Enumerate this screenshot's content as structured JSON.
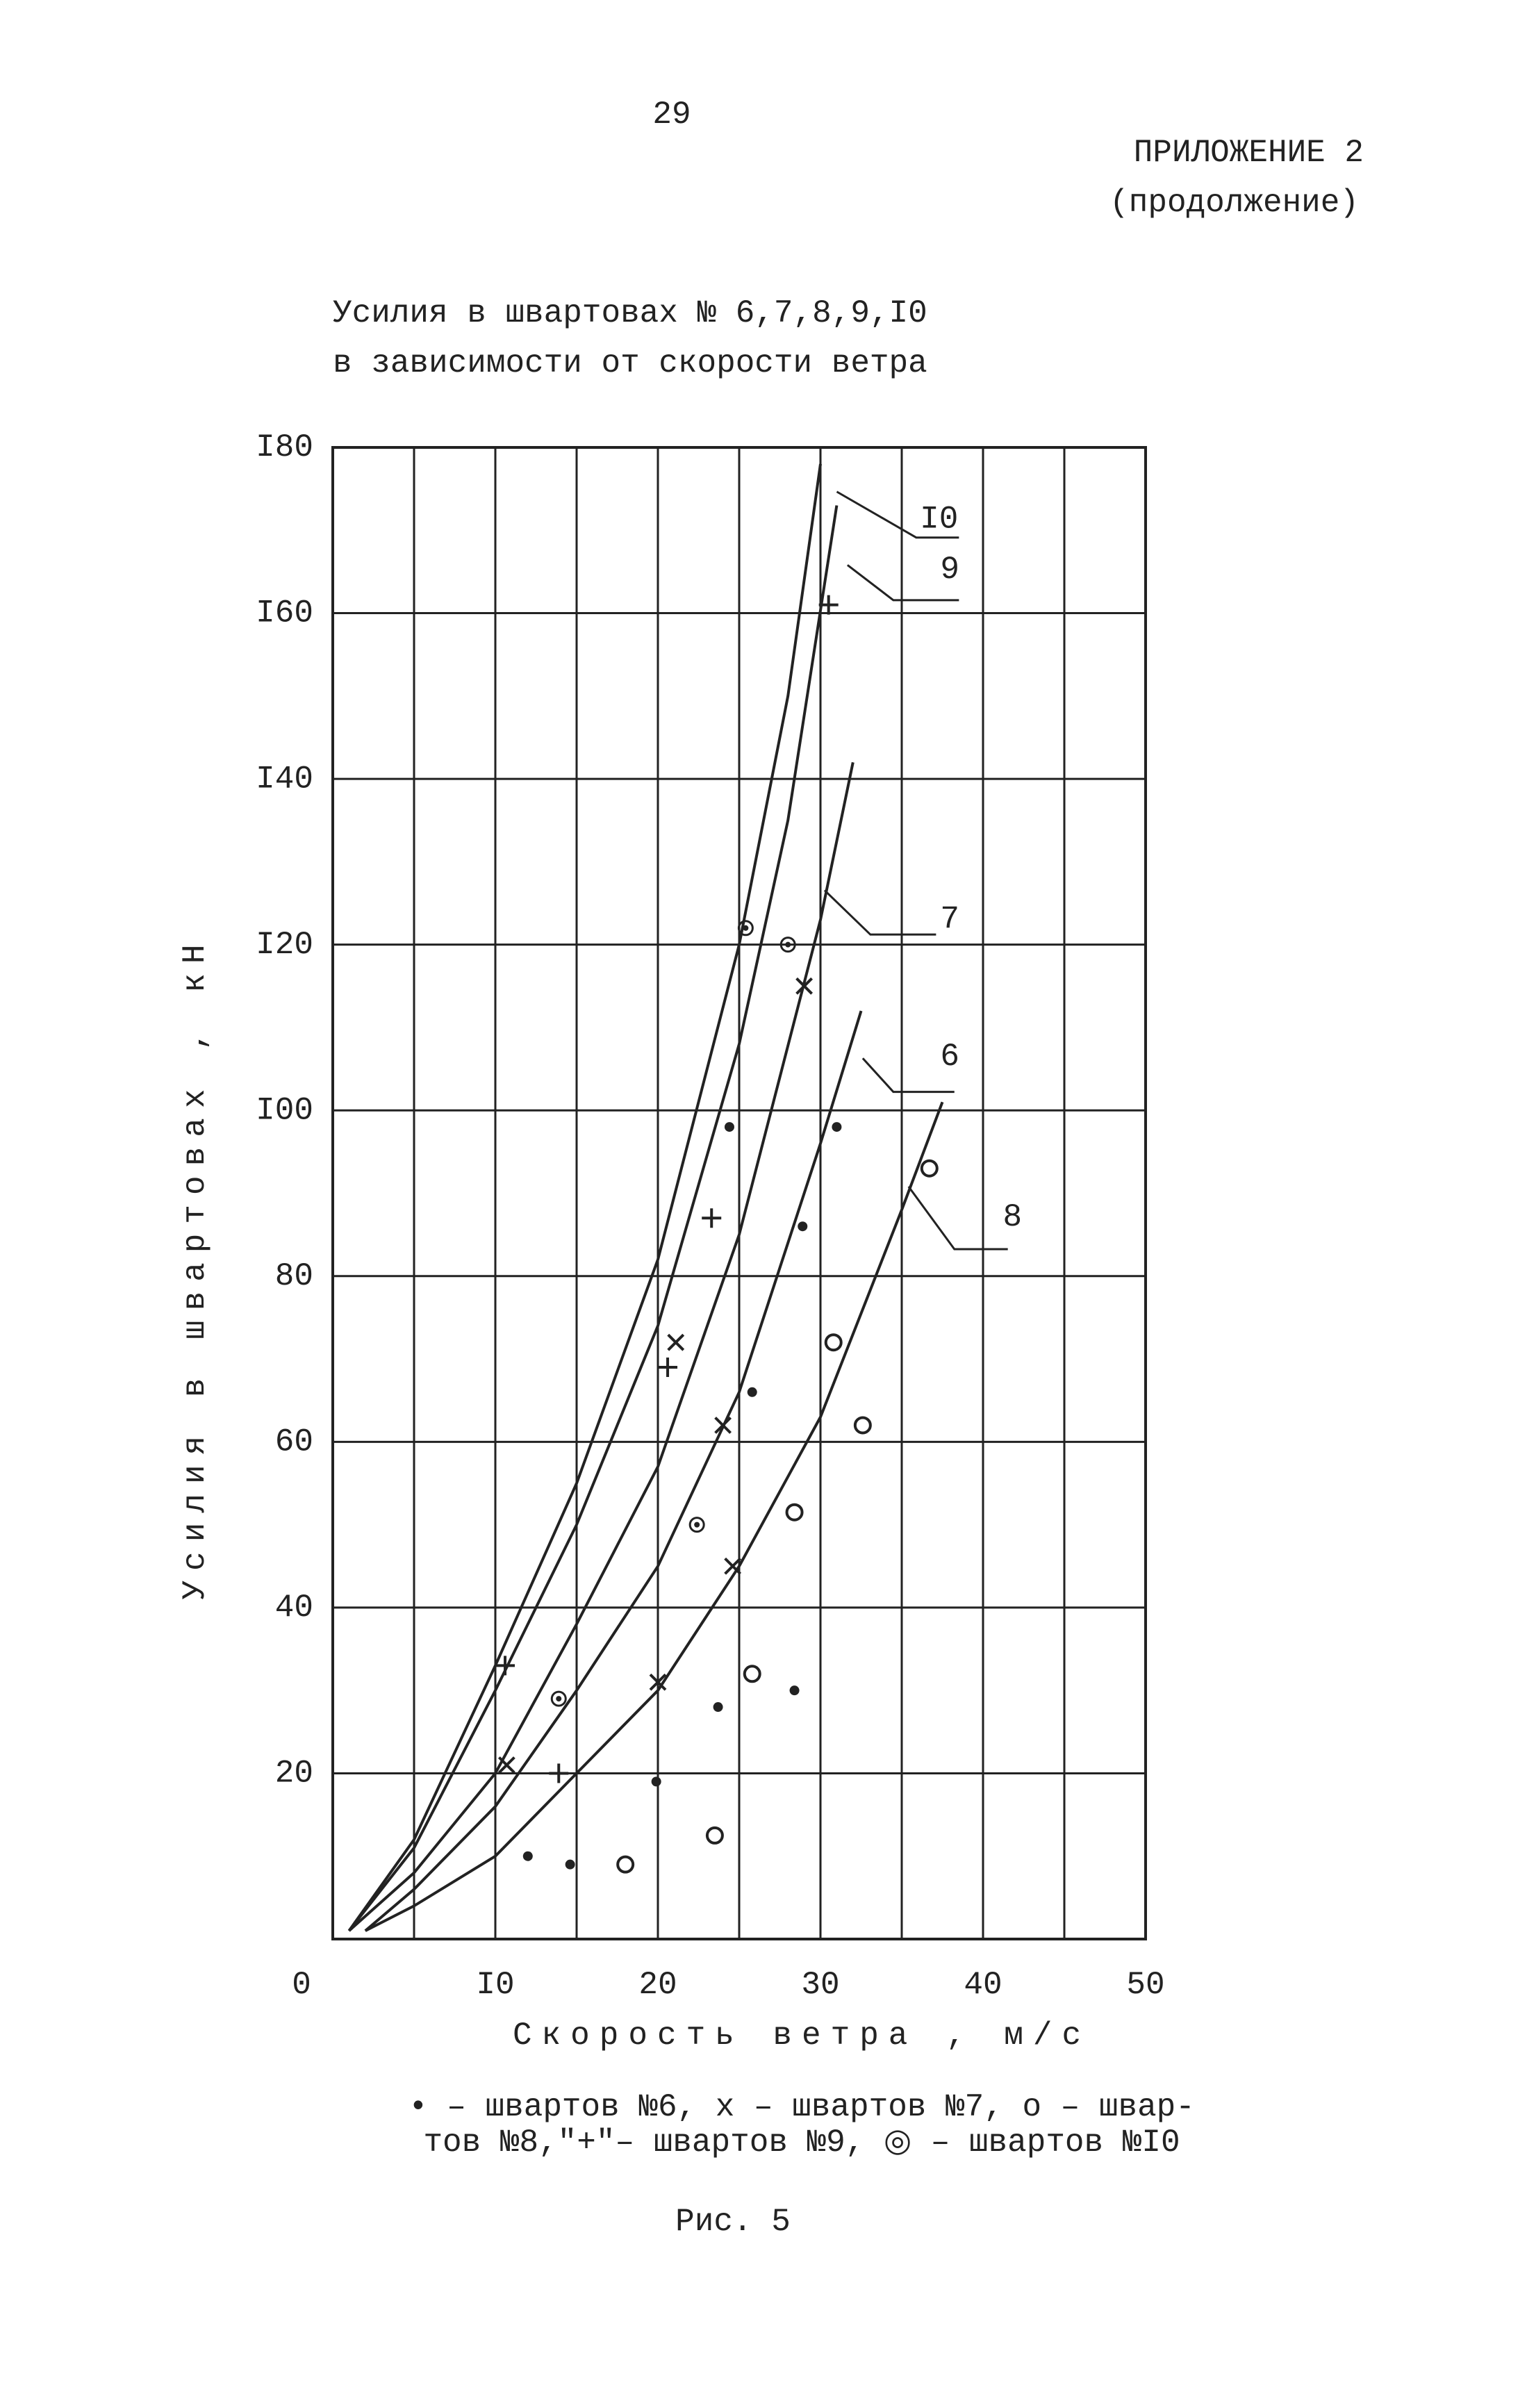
{
  "page_number": "29",
  "appendix": "ПРИЛОЖЕНИЕ 2",
  "appendix_note": "(продолжение)",
  "caption": "Рис. 5",
  "chart_data": {
    "type": "line",
    "title": [
      "Усилия в швартовах № 6,7,8,9,I0",
      "в зависимости от скорости ветра"
    ],
    "xlabel": "Скорость ветра , м/с",
    "ylabel": "Усилия в швартовах , кН",
    "legend_text": [
      "• – швартов №6, х – швартов №7, о – швар-",
      "тов №8,\"+\"– швартов №9, ◎ – швартов №I0"
    ],
    "xlim": [
      0,
      50
    ],
    "ylim": [
      0,
      180
    ],
    "xticks": [
      0,
      {
        "value": 10,
        "label": "I0"
      },
      20,
      30,
      40,
      50
    ],
    "yticks": [
      20,
      40,
      60,
      80,
      {
        "value": 100,
        "label": "I00"
      },
      {
        "value": 120,
        "label": "I20"
      },
      {
        "value": 140,
        "label": "I40"
      },
      {
        "value": 160,
        "label": "I60"
      },
      {
        "value": 180,
        "label": "I80"
      }
    ],
    "xgrid": [
      5,
      15,
      25,
      35,
      45
    ],
    "grid": true,
    "color": "#222222",
    "series": [
      {
        "name": "I0",
        "x": [
          1,
          5,
          10,
          15,
          20,
          25,
          28,
          30
        ],
        "values": [
          1,
          12,
          33,
          55,
          82,
          120,
          150,
          178
        ]
      },
      {
        "name": "9",
        "x": [
          1,
          5,
          10,
          15,
          20,
          25,
          28,
          31
        ],
        "values": [
          1,
          11,
          30,
          50,
          74,
          108,
          135,
          173
        ]
      },
      {
        "name": "7",
        "x": [
          1,
          5,
          10,
          15,
          20,
          25,
          30,
          32
        ],
        "values": [
          1,
          8,
          20,
          38,
          57,
          85,
          123,
          142
        ]
      },
      {
        "name": "6",
        "x": [
          2,
          5,
          10,
          15,
          20,
          25,
          30,
          32.5
        ],
        "values": [
          1,
          6,
          16,
          30,
          45,
          66,
          96,
          112
        ]
      },
      {
        "name": "8",
        "x": [
          2,
          5,
          10,
          15,
          20,
          25,
          30,
          35,
          37.5
        ],
        "values": [
          1,
          4,
          10,
          20,
          30,
          45,
          63,
          88,
          101
        ]
      }
    ],
    "points": [
      {
        "marker": "dot",
        "x": [
          12,
          14.6,
          19.9,
          23.7,
          28.4,
          25.8,
          28.9,
          31,
          24.4
        ],
        "values": [
          10,
          9,
          19,
          28,
          30,
          66,
          86,
          98,
          98
        ]
      },
      {
        "marker": "cross",
        "x": [
          21.1,
          24,
          10.7,
          20,
          24.6,
          29
        ],
        "values": [
          72,
          62,
          21,
          31,
          45,
          115
        ]
      },
      {
        "marker": "circle",
        "x": [
          18,
          23.5,
          25.8,
          28.4,
          32.6,
          30.8,
          36.7
        ],
        "values": [
          9,
          12.5,
          32,
          51.5,
          62,
          72,
          93
        ]
      },
      {
        "marker": "plus",
        "x": [
          23.3,
          20.6,
          13.9,
          10.6,
          30.5
        ],
        "values": [
          87,
          69,
          20,
          33,
          161
        ]
      },
      {
        "marker": "ring",
        "x": [
          13.9,
          22.4,
          25.4,
          28
        ],
        "values": [
          29,
          50,
          122,
          120
        ]
      }
    ]
  }
}
